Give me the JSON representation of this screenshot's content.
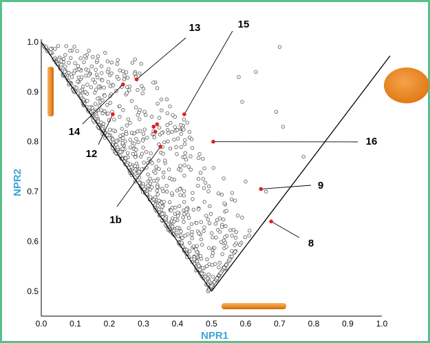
{
  "chart_data": {
    "type": "scatter",
    "title": "",
    "xlabel": "NPR1",
    "ylabel": "NPR2",
    "xlim": [
      0.0,
      1.0
    ],
    "ylim": [
      0.45,
      1.0
    ],
    "x_ticks": [
      "0.0",
      "0.1",
      "0.2",
      "0.3",
      "0.4",
      "0.5",
      "0.6",
      "0.7",
      "0.8",
      "0.9",
      "1.0"
    ],
    "y_ticks": [
      "0.5",
      "0.6",
      "0.7",
      "0.8",
      "0.9",
      "1.0"
    ],
    "triangle": [
      [
        0.0,
        1.0
      ],
      [
        0.5,
        0.5
      ],
      [
        1.0,
        1.0
      ]
    ],
    "highlighted": [
      {
        "label": "13",
        "x": 0.28,
        "y": 0.925
      },
      {
        "label": "15",
        "x": 0.42,
        "y": 0.855
      },
      {
        "label": "14",
        "x": 0.24,
        "y": 0.915
      },
      {
        "label": "12",
        "x": 0.21,
        "y": 0.855
      },
      {
        "label": "1b",
        "x": 0.35,
        "y": 0.79
      },
      {
        "label": "16",
        "x": 0.505,
        "y": 0.8
      },
      {
        "label": "9",
        "x": 0.645,
        "y": 0.705
      },
      {
        "label": "8",
        "x": 0.675,
        "y": 0.64
      }
    ],
    "extra_points": [
      {
        "x": 0.33,
        "y": 0.83
      },
      {
        "x": 0.335,
        "y": 0.82
      },
      {
        "x": 0.34,
        "y": 0.835
      }
    ],
    "point_count": 900
  },
  "colors": {
    "frame": "#58c08a",
    "axis_label": "#3aa6d6",
    "highlight": "#e02020",
    "shape_orange": "#f0922e"
  }
}
